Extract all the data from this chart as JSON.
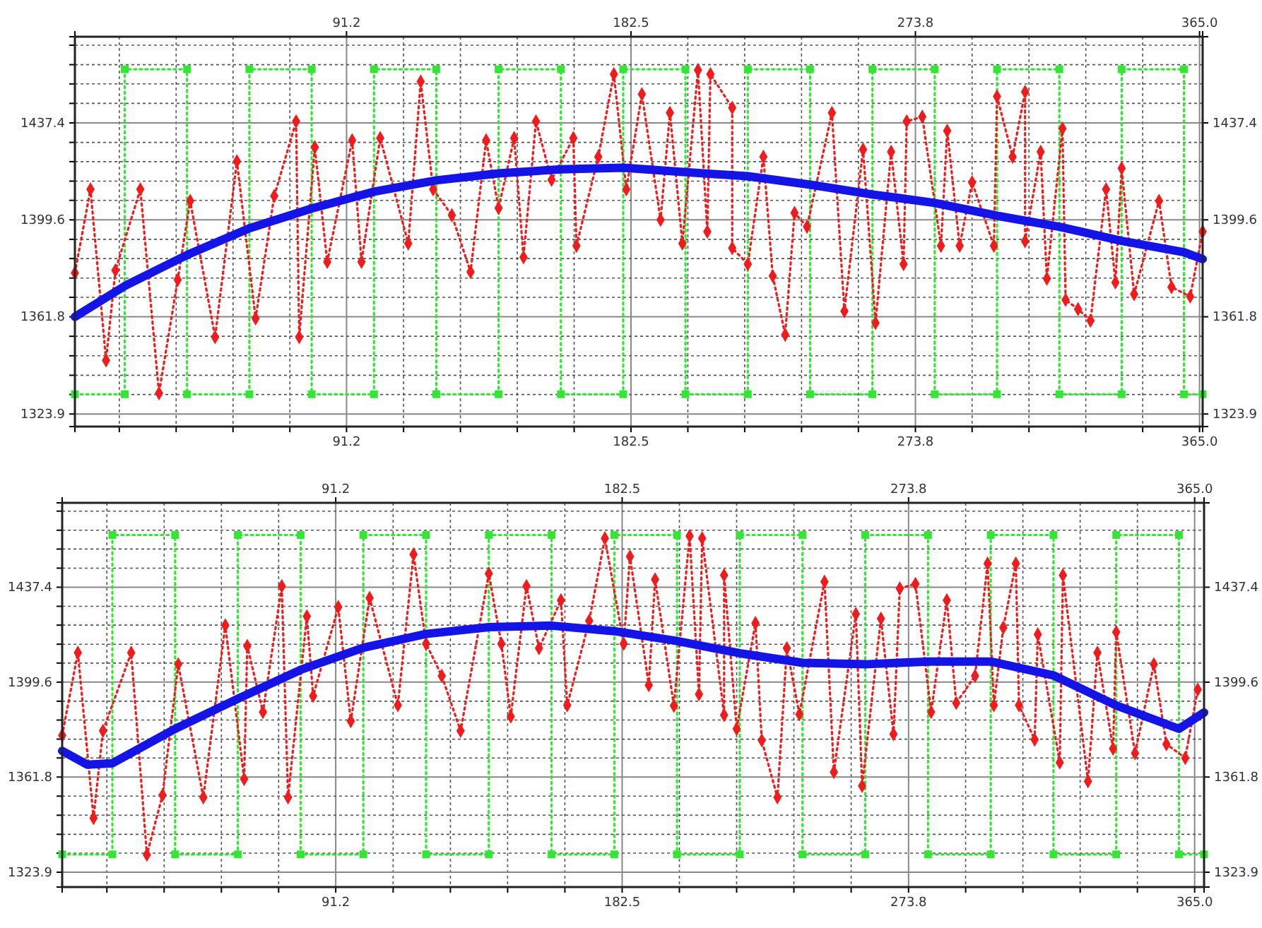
{
  "chart_data": [
    {
      "type": "line",
      "xlim": [
        4,
        366
      ],
      "ylim": [
        1319,
        1471
      ],
      "x2lim": [
        4,
        366
      ],
      "y2lim": [
        1319,
        1471
      ],
      "grid": true,
      "xticks": [
        {
          "value": 18.25,
          "label": null
        },
        {
          "value": 36.5,
          "label": null
        },
        {
          "value": 54.75,
          "label": null
        },
        {
          "value": 73,
          "label": null
        },
        91.2,
        {
          "value": 109.5,
          "label": null
        },
        {
          "value": 127.75,
          "label": null
        },
        {
          "value": 146,
          "label": null
        },
        {
          "value": 164.25,
          "label": null
        },
        182.5,
        {
          "value": 200.75,
          "label": null
        },
        {
          "value": 219,
          "label": null
        },
        {
          "value": 237.25,
          "label": null
        },
        {
          "value": 255.5,
          "label": null
        },
        273.8,
        {
          "value": 292,
          "label": null
        },
        {
          "value": 310.25,
          "label": null
        },
        {
          "value": 328.5,
          "label": null
        },
        {
          "value": 346.75,
          "label": null
        },
        {
          "value": 365,
          "label": "365.0"
        }
      ],
      "x2ticks": [
        91.2,
        182.5,
        273.8,
        {
          "value": 365,
          "label": "365.0"
        }
      ],
      "yticks": [
        1323.9,
        {
          "value": 1331.5,
          "label": null
        },
        {
          "value": 1339,
          "label": null
        },
        {
          "value": 1346.6,
          "label": null
        },
        {
          "value": 1354.2,
          "label": null
        },
        1361.8,
        {
          "value": 1369.4,
          "label": null
        },
        {
          "value": 1376.9,
          "label": null
        },
        {
          "value": 1384.5,
          "label": null
        },
        {
          "value": 1392,
          "label": null
        },
        1399.6,
        {
          "value": 1407.2,
          "label": null
        },
        {
          "value": 1414.7,
          "label": null
        },
        {
          "value": 1422.3,
          "label": null
        },
        {
          "value": 1429.8,
          "label": null
        },
        1437.4,
        {
          "value": 1445,
          "label": null
        },
        {
          "value": 1452.6,
          "label": null
        },
        {
          "value": 1460.1,
          "label": null
        },
        {
          "value": 1467.7,
          "label": null
        }
      ],
      "y2ticks": [
        1323.9,
        1361.8,
        1399.6,
        1437.4
      ],
      "series": [
        {
          "color": "#33e633",
          "marker": "square",
          "line_style": "dotted",
          "x": [
            4,
            20,
            20,
            40,
            40,
            60,
            60,
            80,
            80,
            100,
            100,
            120,
            120,
            140,
            140,
            160,
            160,
            180,
            180,
            200,
            200,
            220,
            220,
            240,
            240,
            260,
            260,
            280,
            280,
            300,
            300,
            320,
            320,
            340,
            340,
            360,
            360,
            366
          ],
          "values": [
            1331.6,
            1331.6,
            1458.3,
            1458.3,
            1331.6,
            1331.6,
            1458.3,
            1458.3,
            1331.6,
            1331.6,
            1458.3,
            1458.3,
            1331.6,
            1331.6,
            1458.3,
            1458.3,
            1331.6,
            1331.6,
            1458.3,
            1458.3,
            1331.6,
            1331.6,
            1458.3,
            1458.3,
            1331.6,
            1331.6,
            1458.3,
            1458.3,
            1331.6,
            1331.6,
            1458.3,
            1458.3,
            1331.6,
            1331.6,
            1458.3,
            1458.3,
            1331.6,
            1331.6
          ]
        },
        {
          "color": "#ee1c1c",
          "marker": "diamond",
          "line_style": "dotted",
          "x": [
            4,
            9,
            14,
            17,
            25,
            31,
            37,
            41,
            49,
            56,
            62,
            68,
            75,
            76,
            81,
            85,
            93,
            96,
            102,
            111,
            115,
            119,
            125,
            131,
            136,
            140,
            145,
            148,
            152,
            157,
            164,
            165,
            172,
            177,
            181,
            186,
            192,
            195,
            199,
            204,
            207,
            208,
            215,
            215,
            220,
            225,
            228,
            232,
            235,
            239,
            247,
            251,
            257,
            261,
            266,
            270,
            271,
            276,
            282,
            284,
            288,
            292,
            299,
            300,
            305,
            309,
            309,
            314,
            316,
            321,
            322,
            326,
            330,
            335,
            338,
            340,
            344,
            352,
            356,
            362,
            366
          ],
          "values": [
            1378.9,
            1411.5,
            1344.8,
            1379.9,
            1411.5,
            1332,
            1376.2,
            1407,
            1353.9,
            1422.4,
            1361.2,
            1408.9,
            1438,
            1353.9,
            1427.9,
            1383.2,
            1430.6,
            1383.2,
            1431.5,
            1390.4,
            1453.5,
            1411.5,
            1401.4,
            1379.3,
            1430.6,
            1404.2,
            1431.5,
            1385,
            1438,
            1415.2,
            1431.5,
            1389.5,
            1424.2,
            1456.4,
            1411.5,
            1448.6,
            1399.6,
            1441.3,
            1390.4,
            1458,
            1395,
            1456.4,
            1443.3,
            1388.6,
            1382.3,
            1424.2,
            1377.7,
            1354.8,
            1402.3,
            1396.9,
            1441.3,
            1364,
            1427,
            1359.4,
            1426.1,
            1382.3,
            1438,
            1439.8,
            1389.5,
            1434.3,
            1389.5,
            1414.2,
            1389.5,
            1447.7,
            1424.2,
            1449.5,
            1391.3,
            1426.1,
            1376.7,
            1435.2,
            1368.4,
            1364.8,
            1360.3,
            1411.5,
            1375.2,
            1419.7,
            1370.6,
            1407,
            1373.4,
            1369.7,
            1395
          ]
        },
        {
          "color": "#1414e6",
          "marker": "none",
          "line_style": "solid",
          "x": [
            4,
            20,
            40,
            60,
            80,
            100,
            120,
            140,
            160,
            180,
            200,
            220,
            240,
            260,
            280,
            300,
            320,
            340,
            360,
            366
          ],
          "values": [
            1361.8,
            1373.8,
            1385.9,
            1396.3,
            1404,
            1410.6,
            1415,
            1417.7,
            1419.3,
            1419.9,
            1418.2,
            1416.6,
            1413.3,
            1409.5,
            1406.2,
            1401.2,
            1396.9,
            1391.4,
            1387,
            1384.3
          ]
        }
      ]
    },
    {
      "type": "line",
      "xlim": [
        4,
        368
      ],
      "ylim": [
        1318,
        1471
      ],
      "x2lim": [
        4,
        368
      ],
      "y2lim": [
        1318,
        1471
      ],
      "grid": true,
      "xticks": [
        {
          "value": 18.25,
          "label": null
        },
        {
          "value": 36.5,
          "label": null
        },
        {
          "value": 54.75,
          "label": null
        },
        {
          "value": 73,
          "label": null
        },
        91.2,
        {
          "value": 109.5,
          "label": null
        },
        {
          "value": 127.75,
          "label": null
        },
        {
          "value": 146,
          "label": null
        },
        {
          "value": 164.25,
          "label": null
        },
        182.5,
        {
          "value": 200.75,
          "label": null
        },
        {
          "value": 219,
          "label": null
        },
        {
          "value": 237.25,
          "label": null
        },
        {
          "value": 255.5,
          "label": null
        },
        273.8,
        {
          "value": 292,
          "label": null
        },
        {
          "value": 310.25,
          "label": null
        },
        {
          "value": 328.5,
          "label": null
        },
        {
          "value": 346.75,
          "label": null
        },
        {
          "value": 365,
          "label": "365.0"
        }
      ],
      "x2ticks": [
        91.2,
        182.5,
        273.8,
        {
          "value": 365,
          "label": "365.0"
        }
      ],
      "yticks": [
        1323.9,
        {
          "value": 1331.5,
          "label": null
        },
        {
          "value": 1339,
          "label": null
        },
        {
          "value": 1346.6,
          "label": null
        },
        {
          "value": 1354.2,
          "label": null
        },
        1361.8,
        {
          "value": 1369.4,
          "label": null
        },
        {
          "value": 1376.9,
          "label": null
        },
        {
          "value": 1384.5,
          "label": null
        },
        {
          "value": 1392,
          "label": null
        },
        1399.6,
        {
          "value": 1407.2,
          "label": null
        },
        {
          "value": 1414.7,
          "label": null
        },
        {
          "value": 1422.3,
          "label": null
        },
        {
          "value": 1429.8,
          "label": null
        },
        1437.4,
        {
          "value": 1445,
          "label": null
        },
        {
          "value": 1452.6,
          "label": null
        },
        {
          "value": 1460.1,
          "label": null
        },
        {
          "value": 1467.7,
          "label": null
        }
      ],
      "y2ticks": [
        1323.9,
        1361.8,
        1399.6,
        1437.4
      ],
      "series": [
        {
          "color": "#33e633",
          "marker": "square",
          "line_style": "dotted",
          "x": [
            4,
            20,
            20,
            40,
            40,
            60,
            60,
            80,
            80,
            100,
            100,
            120,
            120,
            140,
            140,
            160,
            160,
            180,
            180,
            200,
            200,
            220,
            220,
            240,
            240,
            260,
            260,
            280,
            280,
            300,
            300,
            320,
            320,
            340,
            340,
            360,
            360,
            368
          ],
          "values": [
            1331,
            1331,
            1458.2,
            1458.2,
            1331,
            1331,
            1458.2,
            1458.2,
            1331,
            1331,
            1458.2,
            1458.2,
            1331,
            1331,
            1458.2,
            1458.2,
            1331,
            1331,
            1458.2,
            1458.2,
            1331,
            1331,
            1458.2,
            1458.2,
            1331,
            1331,
            1458.2,
            1458.2,
            1331,
            1331,
            1458.2,
            1458.2,
            1331,
            1331,
            1458.2,
            1458.2,
            1331,
            1331
          ]
        },
        {
          "color": "#ee1c1c",
          "marker": "diamond",
          "line_style": "dotted",
          "x": [
            4,
            9,
            14,
            17,
            26,
            31,
            36,
            41,
            49,
            56,
            62,
            63,
            68,
            74,
            76,
            82,
            84,
            92,
            96,
            102,
            111,
            116,
            120,
            125,
            131,
            140,
            144,
            147,
            152,
            156,
            163,
            165,
            172,
            177,
            183,
            185,
            191,
            193,
            199,
            204,
            207,
            208,
            215,
            215,
            219,
            225,
            227,
            232,
            235,
            239,
            247,
            250,
            257,
            259,
            265,
            269,
            271,
            276,
            281,
            286,
            289,
            295,
            299,
            301,
            304,
            308,
            309,
            314,
            315,
            322,
            323,
            331,
            334,
            339,
            340,
            346,
            352,
            356,
            362,
            366
          ],
          "values": [
            1378.4,
            1411.3,
            1345.5,
            1380.2,
            1411.3,
            1330.9,
            1354.6,
            1406.7,
            1353.7,
            1422.2,
            1361,
            1414,
            1387.7,
            1437.8,
            1353.7,
            1425.8,
            1394.1,
            1429.5,
            1384.1,
            1433.1,
            1390.4,
            1450.5,
            1414.9,
            1402.1,
            1380.2,
            1442.8,
            1414.9,
            1385.9,
            1437.8,
            1413.1,
            1432.2,
            1390.4,
            1424,
            1456.9,
            1414.9,
            1449.6,
            1398.4,
            1440.5,
            1390.2,
            1457.8,
            1394.8,
            1456.9,
            1386.5,
            1442.2,
            1381,
            1423.1,
            1376.4,
            1353.7,
            1413.1,
            1386.8,
            1439.6,
            1363.8,
            1426.7,
            1358.3,
            1424.9,
            1378.9,
            1436.9,
            1438.7,
            1387.7,
            1432.2,
            1391.3,
            1402.1,
            1446.8,
            1390.4,
            1421.3,
            1446.8,
            1390.4,
            1376.7,
            1418.6,
            1367.6,
            1442.2,
            1360.1,
            1411.3,
            1373.1,
            1419.5,
            1371.3,
            1406.7,
            1374.9,
            1369.4,
            1396.6
          ]
        },
        {
          "color": "#1414e6",
          "marker": "none",
          "line_style": "solid",
          "x": [
            4,
            12,
            20,
            40,
            60,
            80,
            100,
            120,
            140,
            160,
            180,
            200,
            220,
            240,
            260,
            280,
            300,
            320,
            340,
            360,
            368
          ],
          "values": [
            1372.2,
            1366.7,
            1367.3,
            1381,
            1393,
            1404.5,
            1413.3,
            1418.8,
            1421.5,
            1422.1,
            1419.9,
            1416,
            1411.1,
            1407.3,
            1406.7,
            1407.8,
            1407.8,
            1402.3,
            1390.3,
            1381,
            1387.5
          ]
        }
      ]
    }
  ]
}
